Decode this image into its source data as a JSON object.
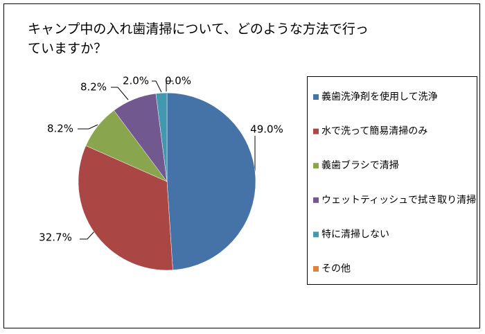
{
  "chart_data": {
    "type": "pie",
    "title": "キャンプ中の入れ歯清掃について、どのような方法で行っていますか？",
    "categories": [
      "義歯洗浄剤を使用して洗浄",
      "水で洗って簡易清掃のみ",
      "義歯ブラシで清掃",
      "ウェットティッシュで拭き取り清掃",
      "特に清掃しない",
      "その他"
    ],
    "values": [
      49.0,
      32.7,
      8.2,
      8.2,
      2.0,
      0.0
    ],
    "value_labels": [
      "49.0%",
      "32.7%",
      "8.2%",
      "8.2%",
      "2.0%",
      "0.0%"
    ],
    "colors": [
      "#4572A7",
      "#AA4643",
      "#89A54E",
      "#71588F",
      "#4198AF",
      "#DB843D"
    ],
    "legend": "right"
  }
}
